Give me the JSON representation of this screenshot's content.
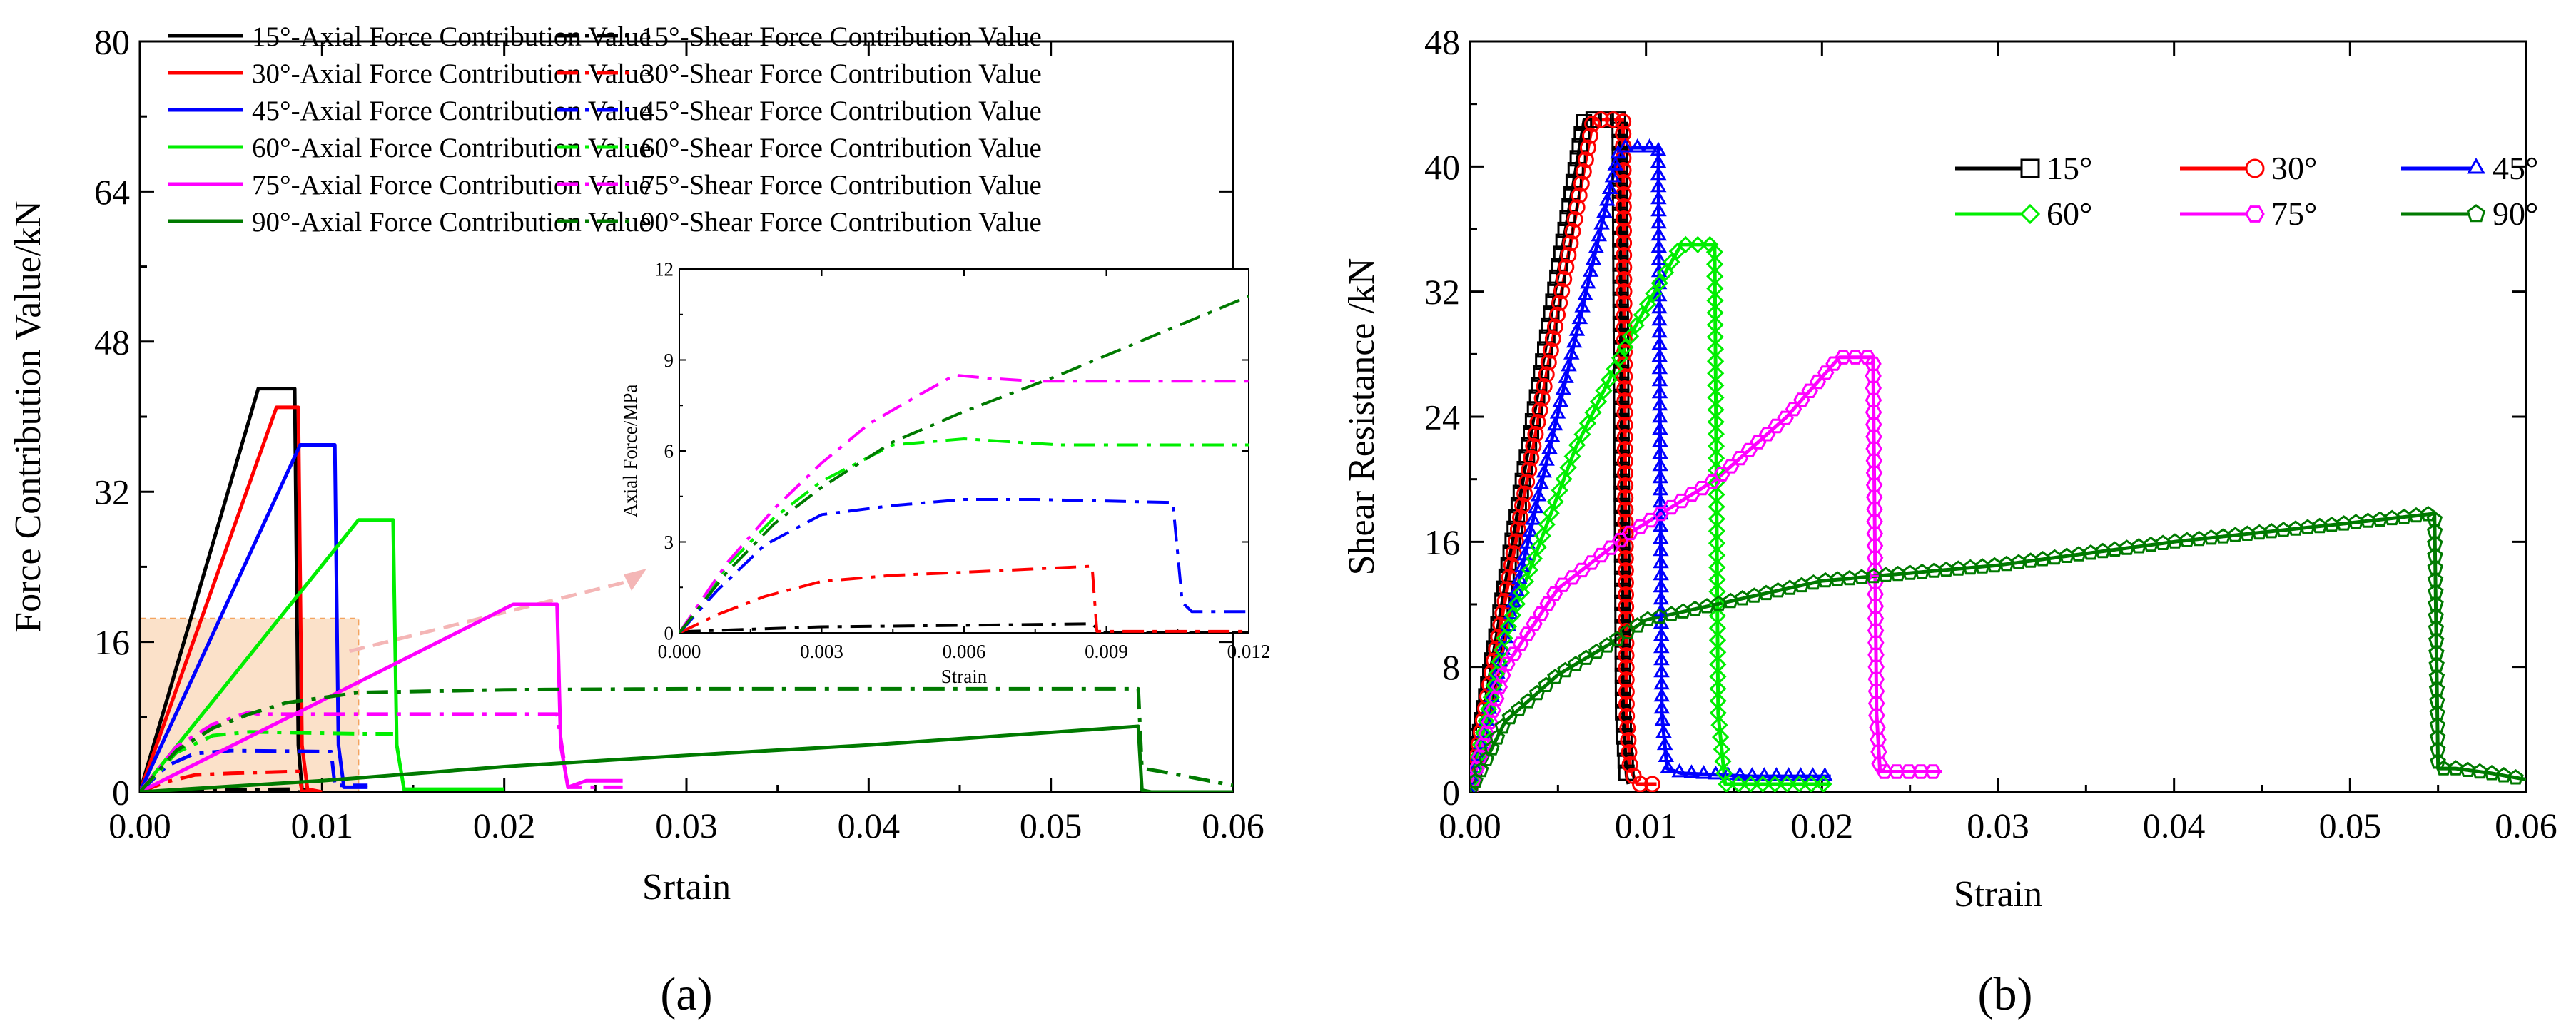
{
  "figure": {
    "panel_a_label": "(a)",
    "panel_b_label": "(b)"
  },
  "chart_data": [
    {
      "type": "line",
      "id": "a",
      "title": "",
      "xlabel": "Srtain",
      "ylabel": "Force Contribution Value/kN",
      "xlim": [
        0,
        0.06
      ],
      "ylim": [
        0,
        80
      ],
      "xticks": [
        "0.00",
        "0.01",
        "0.02",
        "0.03",
        "0.04",
        "0.05",
        "0.06"
      ],
      "yticks": [
        "0",
        "16",
        "32",
        "48",
        "64",
        "80"
      ],
      "legend_position": "top-left",
      "highlight_region": {
        "x": [
          0,
          0.012
        ],
        "y": [
          0,
          18.5
        ]
      },
      "series": [
        {
          "name": "15°-Axial Force Contribution Value",
          "color": "#000000",
          "dash": "solid",
          "x": [
            0,
            0.0065,
            0.0085,
            0.0087,
            0.0089,
            0.0095
          ],
          "y": [
            0,
            43,
            43,
            5,
            0.3,
            0
          ]
        },
        {
          "name": "15°-Shear Force Contribution Value",
          "color": "#000000",
          "dash": "dashdot",
          "x": [
            0,
            0.003,
            0.0085,
            0.0087,
            0.0095
          ],
          "y": [
            0,
            0.2,
            0.3,
            0,
            0
          ]
        },
        {
          "name": "30°-Axial Force Contribution Value",
          "color": "#ff0000",
          "dash": "solid",
          "x": [
            0,
            0.0075,
            0.0087,
            0.0089,
            0.0092,
            0.01
          ],
          "y": [
            0,
            41,
            41,
            5,
            0.3,
            0
          ]
        },
        {
          "name": "30°-Shear Force Contribution Value",
          "color": "#ff0000",
          "dash": "dashdot",
          "x": [
            0,
            0.0015,
            0.003,
            0.005,
            0.0087,
            0.0089,
            0.0095
          ],
          "y": [
            0,
            1.1,
            1.8,
            2.0,
            2.2,
            0.1,
            0
          ]
        },
        {
          "name": "45°-Axial Force Contribution Value",
          "color": "#0000ff",
          "dash": "solid",
          "x": [
            0,
            0.0088,
            0.0107,
            0.0109,
            0.0112,
            0.0125
          ],
          "y": [
            0,
            37,
            37,
            5,
            0.5,
            0.5
          ]
        },
        {
          "name": "45°-Shear Force Contribution Value",
          "color": "#0000ff",
          "dash": "dashdot",
          "x": [
            0,
            0.0015,
            0.003,
            0.005,
            0.0105,
            0.0107,
            0.0125
          ],
          "y": [
            0,
            2.8,
            4.1,
            4.4,
            4.3,
            0.7,
            0.7
          ]
        },
        {
          "name": "60°-Axial Force Contribution Value",
          "color": "#00ee00",
          "dash": "solid",
          "x": [
            0,
            0.012,
            0.0139,
            0.0141,
            0.0145,
            0.02
          ],
          "y": [
            0,
            29,
            29,
            5,
            0.3,
            0.3
          ]
        },
        {
          "name": "60°-Shear Force Contribution Value",
          "color": "#00ee00",
          "dash": "dashdot",
          "x": [
            0,
            0.002,
            0.004,
            0.006,
            0.012,
            0.0139
          ],
          "y": [
            0,
            4.2,
            6.0,
            6.4,
            6.2,
            6.2
          ]
        },
        {
          "name": "75°-Axial Force Contribution Value",
          "color": "#ff00ff",
          "dash": "solid",
          "x": [
            0,
            0.0205,
            0.0229,
            0.0231,
            0.0235,
            0.0245,
            0.0265
          ],
          "y": [
            0,
            20,
            20,
            5,
            0.5,
            1.2,
            1.2
          ]
        },
        {
          "name": "75°-Shear Force Contribution Value",
          "color": "#ff00ff",
          "dash": "dashdot",
          "x": [
            0,
            0.002,
            0.004,
            0.006,
            0.0065,
            0.0229,
            0.0235,
            0.0265
          ],
          "y": [
            0,
            4.8,
            7.2,
            8.5,
            8.3,
            8.3,
            0.5,
            0.5
          ]
        },
        {
          "name": "90°-Axial Force Contribution Value",
          "color": "#007a00",
          "dash": "solid",
          "x": [
            0,
            0.01,
            0.02,
            0.03,
            0.04,
            0.0548,
            0.055,
            0.0555,
            0.06
          ],
          "y": [
            0,
            1.2,
            2.7,
            3.9,
            5.0,
            7.0,
            0.2,
            0,
            0
          ]
        },
        {
          "name": "90°-Shear Force Contribution Value",
          "color": "#007a00",
          "dash": "dashdot",
          "x": [
            0,
            0.002,
            0.004,
            0.006,
            0.008,
            0.012,
            0.02,
            0.03,
            0.054,
            0.0548,
            0.055,
            0.056,
            0.06
          ],
          "y": [
            0,
            4.4,
            6.8,
            8.3,
            9.5,
            10.6,
            10.9,
            11.0,
            11.0,
            11.0,
            2.5,
            2.2,
            0.7
          ]
        }
      ]
    },
    {
      "type": "line",
      "id": "a-inset",
      "title": "",
      "xlabel": "Strain",
      "ylabel": "Axial Force/MPa",
      "xlim": [
        0,
        0.012
      ],
      "ylim": [
        0,
        12
      ],
      "xticks": [
        "0.000",
        "0.003",
        "0.006",
        "0.009",
        "0.012"
      ],
      "yticks": [
        "0",
        "3",
        "6",
        "9",
        "12"
      ],
      "series": [
        {
          "name": "15°-Shear",
          "color": "#000000",
          "dash": "dashdot",
          "x": [
            0,
            0.0002,
            0.003,
            0.006,
            0.0087,
            0.0089,
            0.012
          ],
          "y": [
            0,
            0.05,
            0.2,
            0.25,
            0.3,
            0,
            0
          ]
        },
        {
          "name": "30°-Shear",
          "color": "#ff0000",
          "dash": "dashdot",
          "x": [
            0,
            0.0008,
            0.0018,
            0.003,
            0.0045,
            0.006,
            0.0087,
            0.0088,
            0.012
          ],
          "y": [
            0,
            0.6,
            1.2,
            1.7,
            1.9,
            2.0,
            2.2,
            0.05,
            0.05
          ]
        },
        {
          "name": "45°-Shear",
          "color": "#0000ff",
          "dash": "dashdot",
          "x": [
            0,
            0.0008,
            0.0018,
            0.003,
            0.0045,
            0.006,
            0.0075,
            0.0104,
            0.0106,
            0.0108,
            0.012
          ],
          "y": [
            0,
            1.4,
            2.9,
            3.9,
            4.2,
            4.4,
            4.4,
            4.3,
            1.0,
            0.7,
            0.7
          ]
        },
        {
          "name": "60°-Shear",
          "color": "#00ee00",
          "dash": "dashdot",
          "x": [
            0,
            0.001,
            0.002,
            0.003,
            0.0045,
            0.006,
            0.008,
            0.01,
            0.012
          ],
          "y": [
            0,
            2.2,
            3.8,
            5.0,
            6.2,
            6.4,
            6.2,
            6.2,
            6.2
          ]
        },
        {
          "name": "75°-Shear",
          "color": "#ff00ff",
          "dash": "dashdot",
          "x": [
            0,
            0.001,
            0.002,
            0.003,
            0.004,
            0.005,
            0.0058,
            0.0065,
            0.0075,
            0.009,
            0.012
          ],
          "y": [
            0,
            2.3,
            4.1,
            5.6,
            6.9,
            7.8,
            8.5,
            8.4,
            8.3,
            8.3,
            8.3
          ]
        },
        {
          "name": "90°-Shear",
          "color": "#007a00",
          "dash": "dashdot",
          "x": [
            0,
            0.001,
            0.002,
            0.003,
            0.0045,
            0.006,
            0.008,
            0.01,
            0.012
          ],
          "y": [
            0,
            2.0,
            3.6,
            4.8,
            6.3,
            7.3,
            8.5,
            9.8,
            11.1
          ]
        }
      ]
    },
    {
      "type": "line",
      "id": "b",
      "title": "",
      "xlabel": "Strain",
      "ylabel": "Shear Resistance /kN",
      "xlim": [
        0,
        0.06
      ],
      "ylim": [
        0,
        48
      ],
      "xticks": [
        "0.00",
        "0.01",
        "0.02",
        "0.03",
        "0.04",
        "0.05",
        "0.06"
      ],
      "yticks": [
        "0",
        "8",
        "16",
        "24",
        "32",
        "40",
        "48"
      ],
      "legend_position": "top-right",
      "series": [
        {
          "name": "15°",
          "color": "#000000",
          "marker": "square",
          "x": [
            0,
            0.0065,
            0.0085,
            0.0087,
            0.0089,
            0.009
          ],
          "y": [
            0,
            43,
            43,
            5,
            1,
            0.5
          ]
        },
        {
          "name": "30°",
          "color": "#ff0000",
          "marker": "circle",
          "x": [
            0,
            0.007,
            0.0087,
            0.0089,
            0.0091,
            0.0095,
            0.01,
            0.0106
          ],
          "y": [
            0,
            43,
            43,
            5,
            1.5,
            0.5,
            0.5,
            0.5
          ]
        },
        {
          "name": "45°",
          "color": "#0000ff",
          "marker": "triangle",
          "x": [
            0,
            0.0085,
            0.0107,
            0.0109,
            0.0112,
            0.012,
            0.016,
            0.0205
          ],
          "y": [
            0,
            41.2,
            41.2,
            5,
            1.5,
            1.2,
            1.0,
            1.0
          ]
        },
        {
          "name": "60°",
          "color": "#00ee00",
          "marker": "diamond",
          "x": [
            0,
            0.002,
            0.006,
            0.0095,
            0.012,
            0.0139,
            0.0141,
            0.0145,
            0.017,
            0.0205
          ],
          "y": [
            0,
            10,
            22,
            30,
            35,
            35,
            5,
            0.5,
            0.5,
            0.5
          ]
        },
        {
          "name": "75°",
          "color": "#ff00ff",
          "marker": "hexagon",
          "x": [
            0,
            0.002,
            0.005,
            0.009,
            0.014,
            0.018,
            0.021,
            0.0229,
            0.0231,
            0.0233,
            0.0268
          ],
          "y": [
            0,
            8,
            13,
            16.5,
            20,
            24,
            27.8,
            27.8,
            5,
            1.3,
            1.3
          ]
        },
        {
          "name": "90°",
          "color": "#007a00",
          "marker": "pentagon",
          "x": [
            0,
            0.002,
            0.005,
            0.008,
            0.01,
            0.02,
            0.03,
            0.04,
            0.05,
            0.0548,
            0.055,
            0.056,
            0.058,
            0.06
          ],
          "y": [
            0,
            4.5,
            7.5,
            9.5,
            11,
            13.5,
            14.5,
            16,
            17.2,
            17.8,
            1.5,
            1.5,
            1.2,
            0.8
          ]
        }
      ]
    }
  ]
}
